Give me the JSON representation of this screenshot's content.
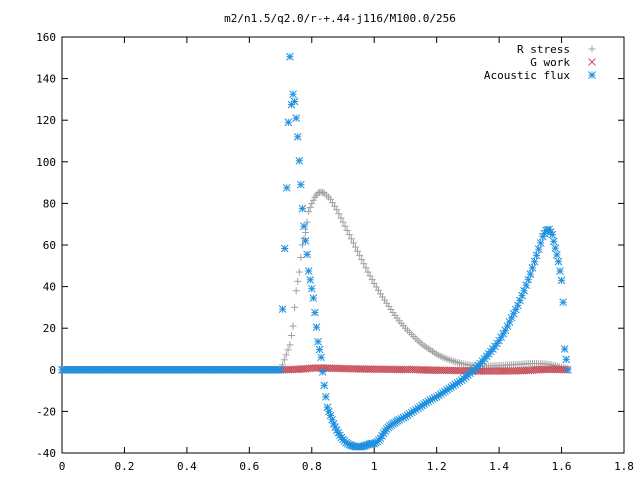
{
  "chart_data": {
    "type": "scatter",
    "title": "m2/n1.5/q2.0/r-+.44-j116/M100.0/256",
    "xlabel": "",
    "ylabel": "",
    "xlim": [
      0,
      1.8
    ],
    "ylim": [
      -40,
      160
    ],
    "x_ticks": [
      0,
      0.2,
      0.4,
      0.6,
      0.8,
      1,
      1.2,
      1.4,
      1.6,
      1.8
    ],
    "y_ticks": [
      -40,
      -20,
      0,
      20,
      40,
      60,
      80,
      100,
      120,
      140,
      160
    ],
    "grid": false,
    "legend_position": "top-right",
    "series": [
      {
        "name": "R stress",
        "marker": "plus",
        "color": "#a0a0a0",
        "points": [
          [
            0.0,
            0
          ],
          [
            0.1,
            0
          ],
          [
            0.2,
            0
          ],
          [
            0.3,
            0
          ],
          [
            0.4,
            0
          ],
          [
            0.5,
            0
          ],
          [
            0.6,
            0
          ],
          [
            0.7,
            0
          ],
          [
            0.73,
            12
          ],
          [
            0.74,
            21
          ],
          [
            0.745,
            30
          ],
          [
            0.75,
            38
          ],
          [
            0.76,
            47
          ],
          [
            0.765,
            54
          ],
          [
            0.77,
            60
          ],
          [
            0.78,
            66
          ],
          [
            0.785,
            71
          ],
          [
            0.79,
            76
          ],
          [
            0.8,
            80
          ],
          [
            0.81,
            83
          ],
          [
            0.82,
            85
          ],
          [
            0.83,
            85.5
          ],
          [
            0.84,
            85
          ],
          [
            0.86,
            82
          ],
          [
            0.88,
            77
          ],
          [
            0.9,
            71
          ],
          [
            0.92,
            65
          ],
          [
            0.94,
            59
          ],
          [
            0.96,
            53
          ],
          [
            0.98,
            47
          ],
          [
            1.0,
            41.5
          ],
          [
            1.02,
            36.5
          ],
          [
            1.04,
            32
          ],
          [
            1.06,
            27.5
          ],
          [
            1.08,
            23.5
          ],
          [
            1.1,
            20
          ],
          [
            1.12,
            17
          ],
          [
            1.14,
            14
          ],
          [
            1.16,
            11.5
          ],
          [
            1.18,
            9.5
          ],
          [
            1.2,
            7.5
          ],
          [
            1.22,
            6
          ],
          [
            1.24,
            4.8
          ],
          [
            1.26,
            3.8
          ],
          [
            1.28,
            3
          ],
          [
            1.3,
            2.4
          ],
          [
            1.32,
            2
          ],
          [
            1.34,
            1.8
          ],
          [
            1.36,
            1.8
          ],
          [
            1.38,
            1.9
          ],
          [
            1.4,
            2
          ],
          [
            1.42,
            2.2
          ],
          [
            1.44,
            2.4
          ],
          [
            1.46,
            2.6
          ],
          [
            1.48,
            2.8
          ],
          [
            1.5,
            3
          ],
          [
            1.52,
            3
          ],
          [
            1.54,
            2.9
          ],
          [
            1.56,
            2.6
          ],
          [
            1.58,
            2
          ],
          [
            1.6,
            1.2
          ],
          [
            1.62,
            0.5
          ]
        ]
      },
      {
        "name": "G work",
        "marker": "cross",
        "color": "#c8505a",
        "points": [
          [
            0.0,
            0
          ],
          [
            0.1,
            0
          ],
          [
            0.2,
            0
          ],
          [
            0.3,
            0
          ],
          [
            0.4,
            0
          ],
          [
            0.5,
            0
          ],
          [
            0.6,
            0
          ],
          [
            0.7,
            0
          ],
          [
            0.75,
            0.2
          ],
          [
            0.78,
            0.5
          ],
          [
            0.8,
            0.8
          ],
          [
            0.82,
            0.9
          ],
          [
            0.85,
            0.8
          ],
          [
            0.9,
            0.6
          ],
          [
            0.95,
            0.4
          ],
          [
            1.0,
            0.3
          ],
          [
            1.05,
            0.2
          ],
          [
            1.1,
            0.1
          ],
          [
            1.12,
            0.2
          ],
          [
            1.14,
            0
          ],
          [
            1.2,
            -0.2
          ],
          [
            1.25,
            -0.3
          ],
          [
            1.3,
            -0.5
          ],
          [
            1.35,
            -0.6
          ],
          [
            1.4,
            -0.6
          ],
          [
            1.45,
            -0.5
          ],
          [
            1.5,
            -0.3
          ],
          [
            1.52,
            0
          ],
          [
            1.55,
            0.2
          ],
          [
            1.6,
            0.1
          ],
          [
            1.62,
            0
          ]
        ]
      },
      {
        "name": "Acoustic flux",
        "marker": "star",
        "color": "#1e90e0",
        "points": [
          [
            0.0,
            0
          ],
          [
            0.1,
            0
          ],
          [
            0.2,
            0
          ],
          [
            0.3,
            0
          ],
          [
            0.4,
            0
          ],
          [
            0.5,
            0
          ],
          [
            0.6,
            0
          ],
          [
            0.7,
            0
          ],
          [
            0.72,
            87.5
          ],
          [
            0.73,
            150.5
          ],
          [
            0.735,
            127.5
          ],
          [
            0.74,
            132.5
          ],
          [
            0.745,
            129
          ],
          [
            0.75,
            121
          ],
          [
            0.755,
            112
          ],
          [
            0.76,
            100.5
          ],
          [
            0.765,
            89
          ],
          [
            0.77,
            77.5
          ],
          [
            0.775,
            69
          ],
          [
            0.78,
            62
          ],
          [
            0.785,
            55.5
          ],
          [
            0.79,
            47.5
          ],
          [
            0.8,
            39
          ],
          [
            0.805,
            34.5
          ],
          [
            0.81,
            27.5
          ],
          [
            0.815,
            20.5
          ],
          [
            0.82,
            13.5
          ],
          [
            0.83,
            6
          ],
          [
            0.835,
            -1
          ],
          [
            0.84,
            -7.5
          ],
          [
            0.845,
            -13
          ],
          [
            0.85,
            -18
          ],
          [
            0.86,
            -22
          ],
          [
            0.87,
            -26
          ],
          [
            0.88,
            -29
          ],
          [
            0.89,
            -31.5
          ],
          [
            0.9,
            -33.5
          ],
          [
            0.91,
            -35
          ],
          [
            0.92,
            -36
          ],
          [
            0.93,
            -36.5
          ],
          [
            0.94,
            -37
          ],
          [
            0.95,
            -37
          ],
          [
            0.96,
            -37
          ],
          [
            0.97,
            -36.5
          ],
          [
            0.98,
            -36
          ],
          [
            0.99,
            -35.5
          ],
          [
            1.0,
            -35.5
          ],
          [
            1.01,
            -34.5
          ],
          [
            1.02,
            -33
          ],
          [
            1.03,
            -30.5
          ],
          [
            1.04,
            -28.5
          ],
          [
            1.05,
            -27
          ],
          [
            1.06,
            -26
          ],
          [
            1.07,
            -25
          ],
          [
            1.08,
            -24
          ],
          [
            1.1,
            -22.5
          ],
          [
            1.12,
            -20.5
          ],
          [
            1.14,
            -18.5
          ],
          [
            1.16,
            -16.5
          ],
          [
            1.18,
            -14.5
          ],
          [
            1.2,
            -13
          ],
          [
            1.22,
            -11
          ],
          [
            1.24,
            -9
          ],
          [
            1.26,
            -7
          ],
          [
            1.28,
            -5
          ],
          [
            1.3,
            -2.5
          ],
          [
            1.32,
            0
          ],
          [
            1.34,
            3
          ],
          [
            1.36,
            6.5
          ],
          [
            1.38,
            10
          ],
          [
            1.4,
            14
          ],
          [
            1.42,
            19
          ],
          [
            1.44,
            25
          ],
          [
            1.46,
            31
          ],
          [
            1.48,
            38
          ],
          [
            1.5,
            46
          ],
          [
            1.52,
            55
          ],
          [
            1.54,
            64
          ],
          [
            1.55,
            67
          ],
          [
            1.56,
            67.5
          ],
          [
            1.57,
            65
          ],
          [
            1.58,
            58.5
          ],
          [
            1.59,
            52
          ],
          [
            1.6,
            43
          ],
          [
            1.605,
            32.5
          ],
          [
            1.61,
            10
          ],
          [
            1.62,
            0
          ]
        ]
      }
    ]
  }
}
